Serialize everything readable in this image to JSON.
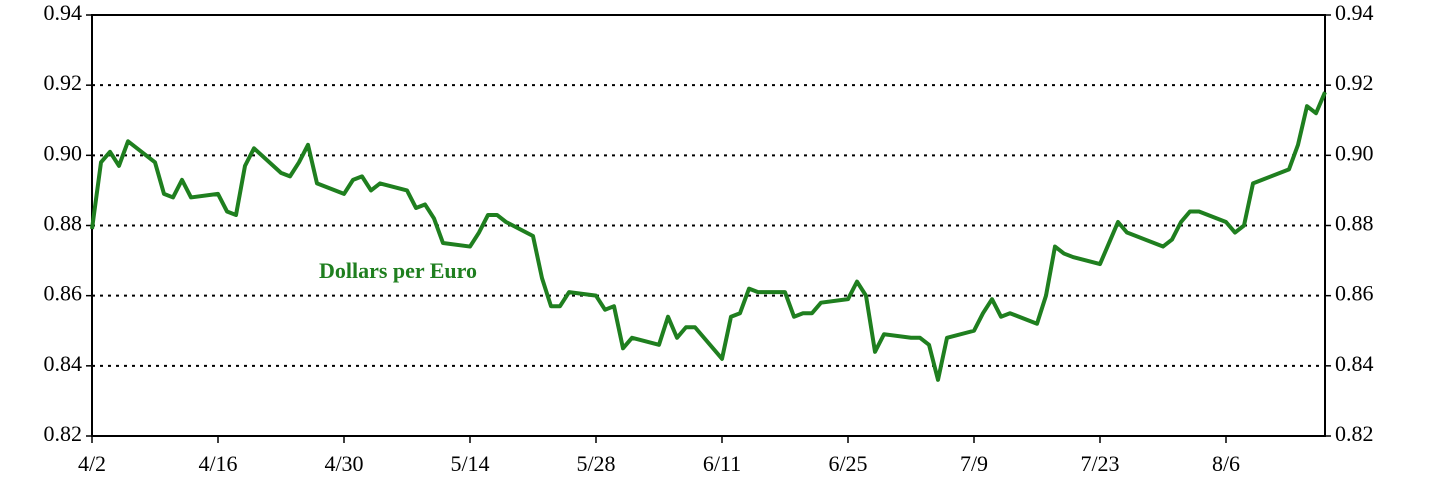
{
  "chart_data": {
    "type": "line",
    "x": [
      "4/2",
      "4/3",
      "4/4",
      "4/5",
      "4/6",
      "4/9",
      "4/10",
      "4/11",
      "4/12",
      "4/13",
      "4/16",
      "4/17",
      "4/18",
      "4/19",
      "4/20",
      "4/23",
      "4/24",
      "4/25",
      "4/26",
      "4/27",
      "4/30",
      "5/1",
      "5/2",
      "5/3",
      "5/4",
      "5/7",
      "5/8",
      "5/9",
      "5/10",
      "5/11",
      "5/14",
      "5/15",
      "5/16",
      "5/17",
      "5/18",
      "5/21",
      "5/22",
      "5/23",
      "5/24",
      "5/25",
      "5/28",
      "5/29",
      "5/30",
      "5/31",
      "6/1",
      "6/4",
      "6/5",
      "6/6",
      "6/7",
      "6/8",
      "6/11",
      "6/12",
      "6/13",
      "6/14",
      "6/15",
      "6/18",
      "6/19",
      "6/20",
      "6/21",
      "6/22",
      "6/25",
      "6/26",
      "6/27",
      "6/28",
      "6/29",
      "7/2",
      "7/3",
      "7/4",
      "7/5",
      "7/6",
      "7/9",
      "7/10",
      "7/11",
      "7/12",
      "7/13",
      "7/16",
      "7/17",
      "7/18",
      "7/19",
      "7/20",
      "7/23",
      "7/24",
      "7/25",
      "7/26",
      "7/27",
      "7/30",
      "7/31",
      "8/1",
      "8/2",
      "8/3",
      "8/6",
      "8/7",
      "8/8",
      "8/9",
      "8/10",
      "8/13",
      "8/14",
      "8/15",
      "8/16",
      "8/17"
    ],
    "series": [
      {
        "name": "Dollars per Euro",
        "color": "#1f7f1f",
        "values": [
          0.879,
          0.898,
          0.901,
          0.897,
          0.904,
          0.898,
          0.889,
          0.888,
          0.893,
          0.888,
          0.889,
          0.884,
          0.883,
          0.897,
          0.902,
          0.895,
          0.894,
          0.898,
          0.903,
          0.892,
          0.889,
          0.893,
          0.894,
          0.89,
          0.892,
          0.89,
          0.885,
          0.886,
          0.882,
          0.875,
          0.874,
          0.878,
          0.883,
          0.883,
          0.881,
          0.877,
          0.865,
          0.857,
          0.857,
          0.861,
          0.86,
          0.856,
          0.857,
          0.845,
          0.848,
          0.846,
          0.854,
          0.848,
          0.851,
          0.851,
          0.842,
          0.854,
          0.855,
          0.862,
          0.861,
          0.861,
          0.854,
          0.855,
          0.855,
          0.858,
          0.859,
          0.864,
          0.86,
          0.844,
          0.849,
          0.848,
          0.848,
          0.846,
          0.836,
          0.848,
          0.85,
          0.855,
          0.859,
          0.854,
          0.855,
          0.852,
          0.86,
          0.874,
          0.872,
          0.871,
          0.869,
          0.875,
          0.881,
          0.878,
          0.877,
          0.874,
          0.876,
          0.881,
          0.884,
          0.884,
          0.881,
          0.878,
          0.88,
          0.892,
          0.893,
          0.896,
          0.903,
          0.914,
          0.912,
          0.918
        ]
      }
    ],
    "xlim": [
      "4/2",
      "8/17"
    ],
    "xticks": [
      "4/2",
      "4/16",
      "4/30",
      "5/14",
      "5/28",
      "6/11",
      "6/25",
      "7/9",
      "7/23",
      "8/6"
    ],
    "ylim": [
      0.82,
      0.94
    ],
    "yticks": [
      {
        "value": 0.82,
        "label": "0.82"
      },
      {
        "value": 0.84,
        "label": "0.84"
      },
      {
        "value": 0.86,
        "label": "0.86"
      },
      {
        "value": 0.88,
        "label": "0.88"
      },
      {
        "value": 0.9,
        "label": "0.90"
      },
      {
        "value": 0.92,
        "label": "0.92"
      },
      {
        "value": 0.94,
        "label": "0.94"
      }
    ],
    "y2lim": [
      0.82,
      0.94
    ],
    "y2ticks": [
      {
        "value": 0.82,
        "label": "0.82"
      },
      {
        "value": 0.84,
        "label": "0.84"
      },
      {
        "value": 0.86,
        "label": "0.86"
      },
      {
        "value": 0.88,
        "label": "0.88"
      },
      {
        "value": 0.9,
        "label": "0.90"
      },
      {
        "value": 0.92,
        "label": "0.92"
      },
      {
        "value": 0.94,
        "label": "0.94"
      }
    ],
    "grid": true,
    "annotation": "Dollars per Euro"
  }
}
